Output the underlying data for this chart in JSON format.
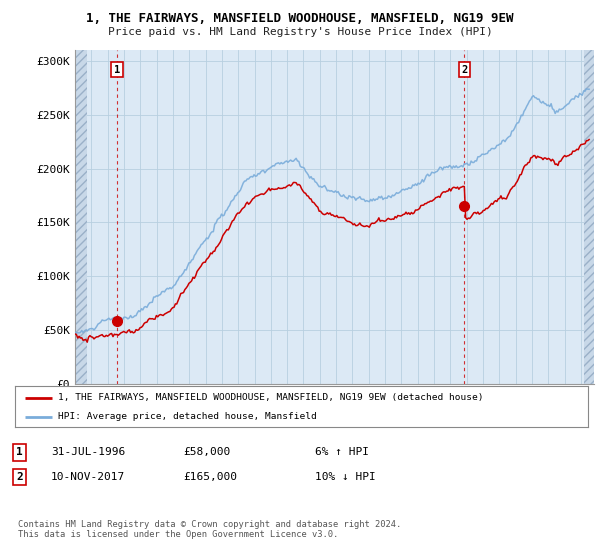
{
  "title": "1, THE FAIRWAYS, MANSFIELD WOODHOUSE, MANSFIELD, NG19 9EW",
  "subtitle": "Price paid vs. HM Land Registry's House Price Index (HPI)",
  "ylim": [
    0,
    310000
  ],
  "yticks": [
    0,
    50000,
    100000,
    150000,
    200000,
    250000,
    300000
  ],
  "ytick_labels": [
    "£0",
    "£50K",
    "£100K",
    "£150K",
    "£200K",
    "£250K",
    "£300K"
  ],
  "sale1_date": 1996.58,
  "sale1_price": 58000,
  "sale1_label": "1",
  "sale2_date": 2017.86,
  "sale2_price": 165000,
  "sale2_label": "2",
  "red_line_color": "#cc0000",
  "blue_line_color": "#7aacda",
  "marker_color": "#cc0000",
  "marker_size": 7,
  "legend1_text": "1, THE FAIRWAYS, MANSFIELD WOODHOUSE, MANSFIELD, NG19 9EW (detached house)",
  "legend2_text": "HPI: Average price, detached house, Mansfield",
  "table_row1": [
    "1",
    "31-JUL-1996",
    "£58,000",
    "6% ↑ HPI"
  ],
  "table_row2": [
    "2",
    "10-NOV-2017",
    "£165,000",
    "10% ↓ HPI"
  ],
  "footnote": "Contains HM Land Registry data © Crown copyright and database right 2024.\nThis data is licensed under the Open Government Licence v3.0.",
  "plot_bg": "#dce9f5",
  "grid_color": "#b8cfe0",
  "hatch_color": "#c8d8e8"
}
